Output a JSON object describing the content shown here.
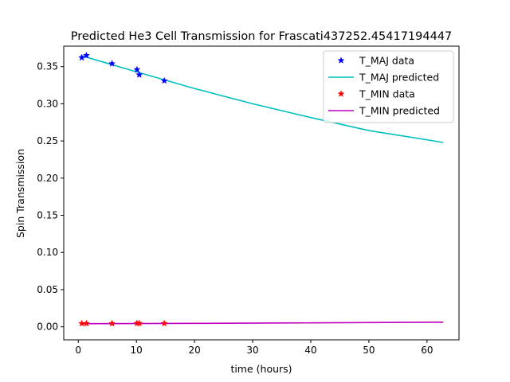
{
  "chart_data": {
    "type": "line",
    "title": "Predicted He3 Cell Transmission for Frascati437252.45417194447",
    "xlabel": "time (hours)",
    "ylabel": "Spin Transmission",
    "xlim": [
      -2.5,
      65.5
    ],
    "ylim": [
      -0.0175,
      0.3775
    ],
    "xticks": [
      0,
      10,
      20,
      30,
      40,
      50,
      60
    ],
    "yticks": [
      0.0,
      0.05,
      0.1,
      0.15,
      0.2,
      0.25,
      0.3,
      0.35
    ],
    "xtick_labels": [
      "0",
      "10",
      "20",
      "30",
      "40",
      "50",
      "60"
    ],
    "ytick_labels": [
      "0.00",
      "0.05",
      "0.10",
      "0.15",
      "0.20",
      "0.25",
      "0.30",
      "0.35"
    ],
    "grid": false,
    "legend_position": "top-right",
    "series": [
      {
        "name": "T_MAJ data",
        "kind": "scatter",
        "marker": "star",
        "color": "#0000ff",
        "points": [
          [
            0.6,
            0.362
          ],
          [
            1.4,
            0.365
          ],
          [
            5.8,
            0.354
          ],
          [
            10.1,
            0.346
          ],
          [
            10.5,
            0.339
          ],
          [
            14.8,
            0.331
          ]
        ]
      },
      {
        "name": "T_MAJ predicted",
        "kind": "line",
        "color": "#00bfbf",
        "points": [
          [
            0.4,
            0.365
          ],
          [
            10,
            0.343
          ],
          [
            20,
            0.3205
          ],
          [
            30,
            0.3
          ],
          [
            40,
            0.2815
          ],
          [
            50,
            0.264
          ],
          [
            62.8,
            0.248
          ]
        ]
      },
      {
        "name": "T_MIN data",
        "kind": "scatter",
        "marker": "star",
        "color": "#ff0000",
        "points": [
          [
            0.6,
            0.0045
          ],
          [
            1.4,
            0.0045
          ],
          [
            5.8,
            0.0045
          ],
          [
            10.1,
            0.0048
          ],
          [
            10.5,
            0.0046
          ],
          [
            14.8,
            0.0046
          ]
        ]
      },
      {
        "name": "T_MIN predicted",
        "kind": "line",
        "color": "#bf00bf",
        "points": [
          [
            0.4,
            0.0042
          ],
          [
            20,
            0.0046
          ],
          [
            40,
            0.0053
          ],
          [
            62.8,
            0.0063
          ]
        ]
      }
    ]
  }
}
